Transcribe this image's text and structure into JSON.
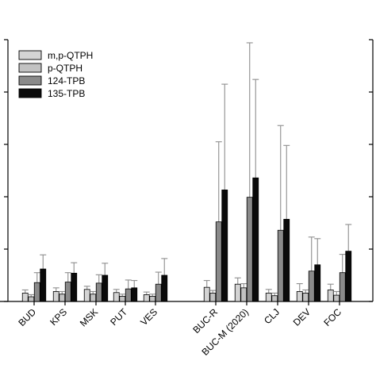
{
  "chart_data": {
    "type": "bar",
    "categories": [
      "BUD",
      "KPS",
      "MSK",
      "PUT",
      "VES",
      "BUC-R",
      "BUC-M (2020)",
      "CLJ",
      "DEV",
      "FOC"
    ],
    "series": [
      {
        "name": "m,p-QTPH",
        "color": "#d4d4d4",
        "values": [
          0.16,
          0.19,
          0.23,
          0.17,
          0.13,
          0.27,
          0.33,
          0.16,
          0.19,
          0.22
        ],
        "errors": [
          0.06,
          0.07,
          0.06,
          0.06,
          0.05,
          0.13,
          0.12,
          0.07,
          0.15,
          0.11
        ]
      },
      {
        "name": "p-QTPH",
        "color": "#c2c2c2",
        "values": [
          0.09,
          0.14,
          0.14,
          0.1,
          0.1,
          0.16,
          0.26,
          0.11,
          0.16,
          0.12
        ],
        "errors": [
          0.04,
          0.05,
          0.05,
          0.04,
          0.04,
          0.05,
          0.08,
          0.05,
          0.06,
          0.07
        ]
      },
      {
        "name": "124-TPB",
        "color": "#8a8a8a",
        "values": [
          0.36,
          0.37,
          0.35,
          0.24,
          0.33,
          1.52,
          1.99,
          1.36,
          0.58,
          0.55
        ],
        "errors": [
          0.19,
          0.18,
          0.16,
          0.17,
          0.23,
          1.53,
          2.95,
          2.0,
          0.65,
          0.35
        ]
      },
      {
        "name": "135-TPB",
        "color": "#0a0a0a",
        "values": [
          0.62,
          0.54,
          0.5,
          0.26,
          0.5,
          2.13,
          2.36,
          1.57,
          0.7,
          0.96
        ],
        "errors": [
          0.27,
          0.2,
          0.23,
          0.14,
          0.32,
          2.02,
          1.88,
          1.41,
          0.5,
          0.51
        ]
      }
    ],
    "ylim": [
      0,
      5
    ],
    "yticks": [
      0,
      1,
      2,
      3,
      4,
      5
    ],
    "xlabel": "",
    "ylabel": "",
    "legend_position": "top-left",
    "grid": false
  }
}
